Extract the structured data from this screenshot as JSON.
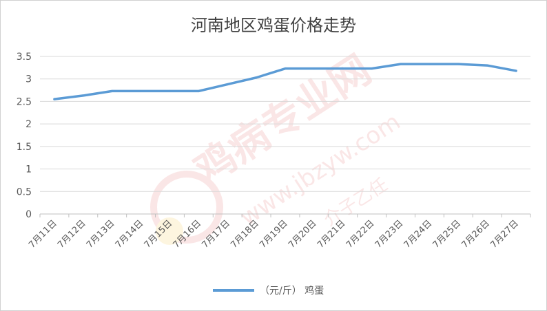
{
  "chart_data": {
    "type": "line",
    "title": "河南地区鸡蛋价格走势",
    "xlabel": "",
    "ylabel": "",
    "ylim": [
      0,
      3.5
    ],
    "yticks": [
      "0",
      "0.5",
      "1",
      "1.5",
      "2",
      "2.5",
      "3",
      "3.5"
    ],
    "categories": [
      "7月11日",
      "7月12日",
      "7月13日",
      "7月14日",
      "7月15日",
      "7月16日",
      "7月17日",
      "7月18日",
      "7月19日",
      "7月20日",
      "7月21日",
      "7月22日",
      "7月23日",
      "7月24日",
      "7月25日",
      "7月26日",
      "7月27日"
    ],
    "series": [
      {
        "name": "（元/斤） 鸡蛋",
        "color": "#5b9bd5",
        "values": [
          2.55,
          2.63,
          2.73,
          2.73,
          2.73,
          2.73,
          2.88,
          3.03,
          3.23,
          3.23,
          3.23,
          3.23,
          3.33,
          3.33,
          3.33,
          3.3,
          3.18
        ]
      }
    ],
    "grid": true,
    "legend": "bottom"
  },
  "watermark": {
    "brand": "鸡病专业网",
    "url": "www.jbzyw.com",
    "script": "介子乙任"
  }
}
